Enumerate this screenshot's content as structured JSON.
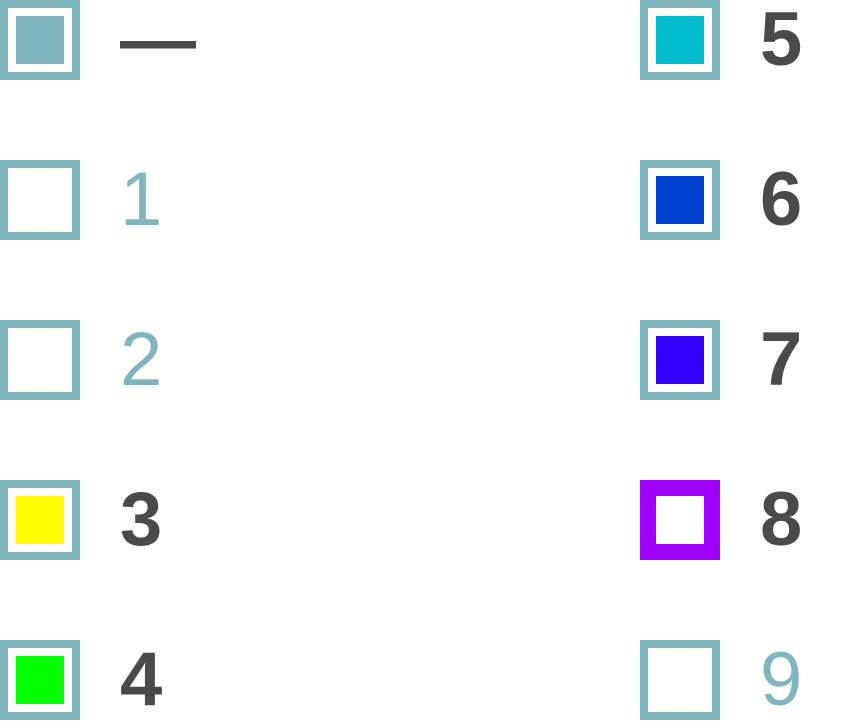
{
  "palette": {
    "frame_color": "#7fb5bd",
    "selected_frame_color": "#a200ff",
    "active_text_color": "#4a4a4a",
    "muted_text_color": "#7fb5bd"
  },
  "options": [
    {
      "label": "—",
      "fill": "#7fb5bd",
      "muted": false
    },
    {
      "label": "1",
      "fill": null,
      "muted": true
    },
    {
      "label": "2",
      "fill": null,
      "muted": true
    },
    {
      "label": "3",
      "fill": "#ffff00",
      "muted": false
    },
    {
      "label": "4",
      "fill": "#00ff00",
      "muted": false
    },
    {
      "label": "5",
      "fill": "#00bccc",
      "muted": false
    },
    {
      "label": "6",
      "fill": "#0040d0",
      "muted": false
    },
    {
      "label": "7",
      "fill": "#3300ff",
      "muted": false
    },
    {
      "label": "8",
      "fill": null,
      "muted": false,
      "selected": true
    },
    {
      "label": "9",
      "fill": null,
      "muted": true
    }
  ]
}
